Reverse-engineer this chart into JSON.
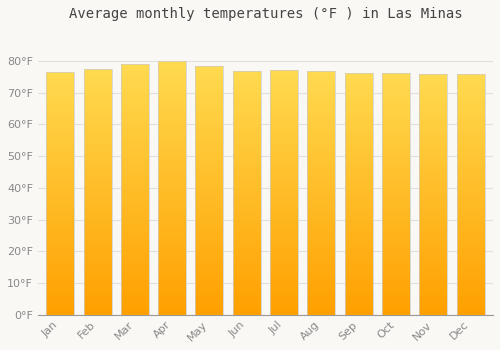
{
  "title": "Average monthly temperatures (°F ) in Las Minas",
  "months": [
    "Jan",
    "Feb",
    "Mar",
    "Apr",
    "May",
    "Jun",
    "Jul",
    "Aug",
    "Sep",
    "Oct",
    "Nov",
    "Dec"
  ],
  "values": [
    76.5,
    77.5,
    79.0,
    80.0,
    78.5,
    76.8,
    77.2,
    76.7,
    76.2,
    76.1,
    75.7,
    75.8
  ],
  "bar_color_light": "#FFD54F",
  "bar_color_dark": "#FFA000",
  "bar_edge_color": "#cccccc",
  "background_color": "#faf8f5",
  "grid_color": "#e0e0e0",
  "ylim": [
    0,
    90
  ],
  "yticks": [
    0,
    10,
    20,
    30,
    40,
    50,
    60,
    70,
    80
  ],
  "ytick_labels": [
    "0°F",
    "10°F",
    "20°F",
    "30°F",
    "40°F",
    "50°F",
    "60°F",
    "70°F",
    "80°F"
  ],
  "title_fontsize": 10,
  "tick_fontsize": 8,
  "font_color": "#888888",
  "bar_width": 0.75
}
